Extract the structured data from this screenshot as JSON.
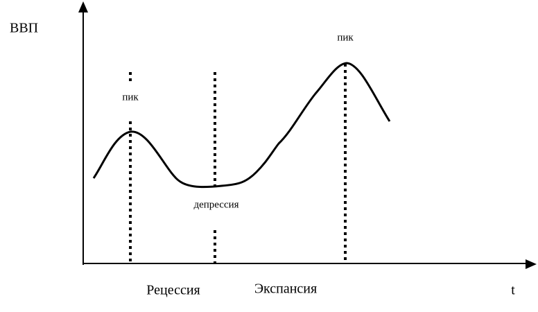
{
  "axes": {
    "y_label": "ВВП",
    "x_label": "t"
  },
  "labels": {
    "peaks": [
      "пик",
      "пик"
    ],
    "trough": "депрессия"
  },
  "phases": [
    "Рецессия",
    "Экспансия"
  ]
}
